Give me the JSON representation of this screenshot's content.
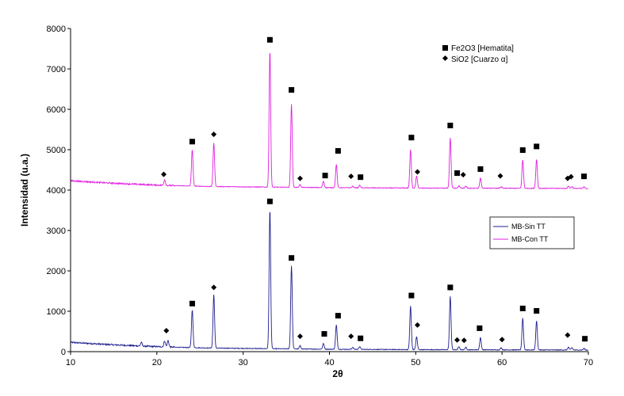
{
  "chart_data": {
    "type": "line",
    "xlabel": "2θ",
    "ylabel": "Intensidad (u.a.)",
    "xlim": [
      10,
      70
    ],
    "ylim": [
      0,
      8000
    ],
    "x_ticks": [
      10,
      20,
      30,
      40,
      50,
      60,
      70
    ],
    "y_ticks": [
      0,
      1000,
      2000,
      3000,
      4000,
      5000,
      6000,
      7000,
      8000
    ],
    "grid": false,
    "legend_position": "right",
    "series": [
      {
        "name": "MB-Sin TT",
        "color": "#1f1f8f",
        "baseline": [
          [
            10,
            230
          ],
          [
            14,
            180
          ],
          [
            18,
            140
          ],
          [
            22,
            110
          ],
          [
            26,
            90
          ],
          [
            30,
            80
          ],
          [
            40,
            60
          ],
          [
            50,
            50
          ],
          [
            60,
            45
          ],
          [
            70,
            40
          ]
        ],
        "peaks": [
          [
            18.2,
            90
          ],
          [
            20.9,
            150
          ],
          [
            21.3,
            160
          ],
          [
            24.1,
            930
          ],
          [
            26.6,
            1320
          ],
          [
            33.1,
            3450
          ],
          [
            35.6,
            2060
          ],
          [
            36.6,
            80
          ],
          [
            39.3,
            140
          ],
          [
            40.8,
            600
          ],
          [
            42.7,
            50
          ],
          [
            43.5,
            70
          ],
          [
            49.4,
            1080
          ],
          [
            50.1,
            320
          ],
          [
            54.0,
            1320
          ],
          [
            55.0,
            70
          ],
          [
            55.8,
            60
          ],
          [
            57.5,
            300
          ],
          [
            59.9,
            50
          ],
          [
            62.4,
            780
          ],
          [
            64.0,
            720
          ],
          [
            67.7,
            70
          ],
          [
            68.1,
            60
          ],
          [
            69.5,
            40
          ]
        ]
      },
      {
        "name": "MB-Con TT",
        "color": "#e020e0",
        "baseline": [
          [
            10,
            4230
          ],
          [
            14,
            4180
          ],
          [
            18,
            4140
          ],
          [
            22,
            4110
          ],
          [
            26,
            4090
          ],
          [
            30,
            4080
          ],
          [
            40,
            4060
          ],
          [
            50,
            4050
          ],
          [
            60,
            4045
          ],
          [
            70,
            4040
          ]
        ],
        "peaks": [
          [
            20.9,
            140
          ],
          [
            24.1,
            900
          ],
          [
            26.6,
            1080
          ],
          [
            33.1,
            3380
          ],
          [
            35.6,
            2060
          ],
          [
            36.6,
            70
          ],
          [
            39.3,
            160
          ],
          [
            40.8,
            580
          ],
          [
            42.7,
            40
          ],
          [
            43.5,
            60
          ],
          [
            49.4,
            950
          ],
          [
            50.1,
            300
          ],
          [
            54.0,
            1250
          ],
          [
            55.0,
            60
          ],
          [
            55.8,
            50
          ],
          [
            57.5,
            250
          ],
          [
            59.9,
            40
          ],
          [
            62.4,
            700
          ],
          [
            64.0,
            720
          ],
          [
            67.7,
            60
          ],
          [
            68.1,
            50
          ],
          [
            69.5,
            40
          ]
        ]
      }
    ],
    "annotations": {
      "hematite_label": "Fe2O3 [Hematita]",
      "quartz_label": "SiO2 [Cuarzo α]",
      "hematite": [
        [
          24.1,
          5200
        ],
        [
          33.1,
          7720
        ],
        [
          35.6,
          6480
        ],
        [
          39.5,
          4360
        ],
        [
          41.0,
          4970
        ],
        [
          43.6,
          4320
        ],
        [
          49.5,
          5300
        ],
        [
          54.0,
          5600
        ],
        [
          54.8,
          4420
        ],
        [
          57.5,
          4520
        ],
        [
          62.4,
          4990
        ],
        [
          64.0,
          5080
        ],
        [
          69.5,
          4340
        ],
        [
          24.1,
          1190
        ],
        [
          33.1,
          3720
        ],
        [
          35.6,
          2320
        ],
        [
          39.4,
          440
        ],
        [
          41.0,
          890
        ],
        [
          43.6,
          330
        ],
        [
          49.5,
          1390
        ],
        [
          54.0,
          1590
        ],
        [
          57.4,
          580
        ],
        [
          62.4,
          1070
        ],
        [
          64.0,
          1010
        ],
        [
          69.6,
          320
        ]
      ],
      "quartz": [
        [
          20.8,
          4390
        ],
        [
          26.6,
          5380
        ],
        [
          36.6,
          4290
        ],
        [
          42.5,
          4340
        ],
        [
          50.2,
          4450
        ],
        [
          55.5,
          4380
        ],
        [
          59.8,
          4350
        ],
        [
          67.6,
          4290
        ],
        [
          68.0,
          4330
        ],
        [
          21.1,
          520
        ],
        [
          26.6,
          1590
        ],
        [
          36.6,
          380
        ],
        [
          42.5,
          380
        ],
        [
          50.2,
          660
        ],
        [
          54.8,
          290
        ],
        [
          55.6,
          280
        ],
        [
          60.0,
          300
        ],
        [
          67.6,
          410
        ]
      ]
    }
  },
  "legend": {
    "items": [
      "MB-Sin TT",
      "MB-Con TT"
    ]
  },
  "colors": {
    "sin_tt": "#1f1f8f",
    "con_tt": "#e020e0",
    "axis": "#000000"
  }
}
